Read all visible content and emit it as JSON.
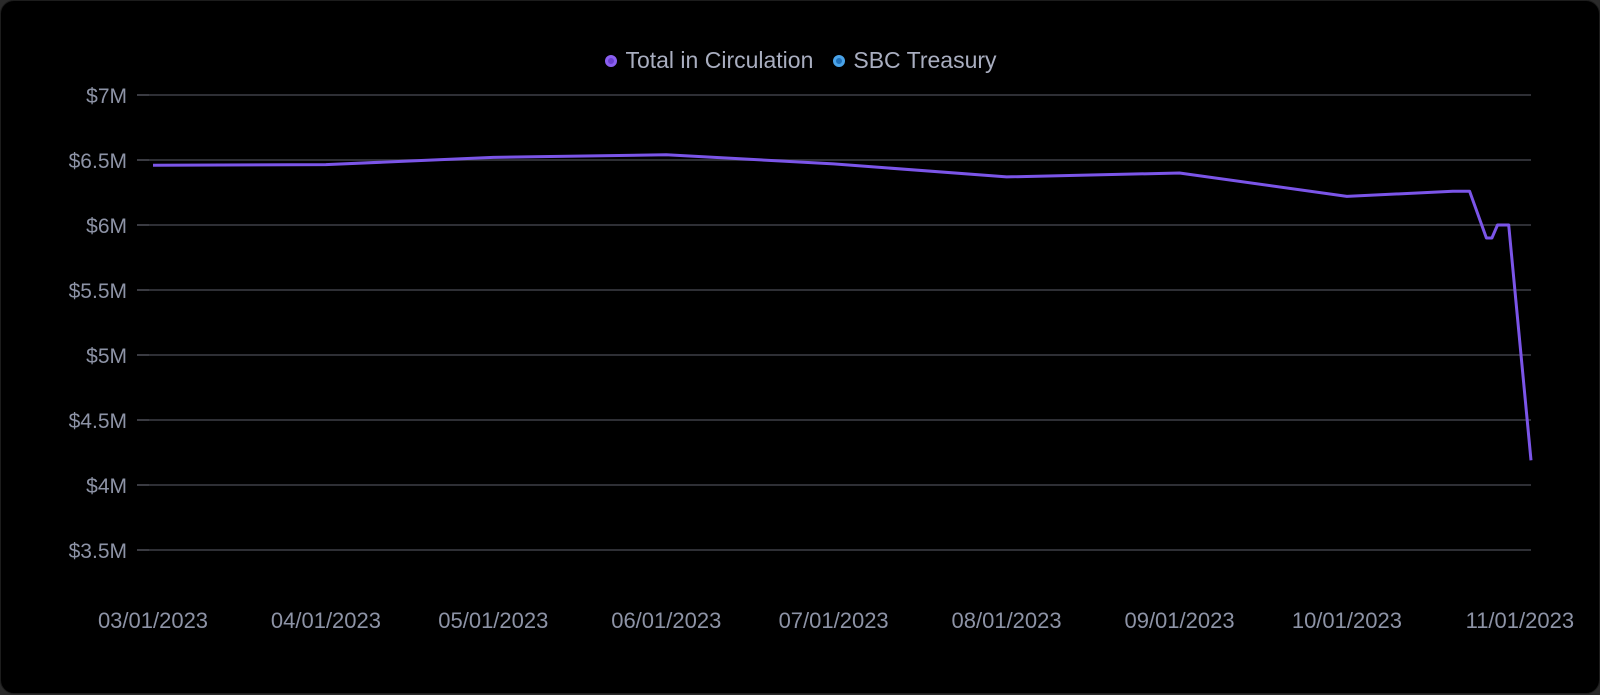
{
  "legend": {
    "items": [
      {
        "label": "Total in Circulation",
        "color": "#7b4fe0"
      },
      {
        "label": "SBC Treasury",
        "color": "#3a8fd6"
      }
    ]
  },
  "chart_data": {
    "type": "line",
    "ylim": [
      3300000,
      7000000
    ],
    "yticks": [
      {
        "value": 7000000,
        "label": "$7M"
      },
      {
        "value": 6500000,
        "label": "$6.5M"
      },
      {
        "value": 6000000,
        "label": "$6M"
      },
      {
        "value": 5500000,
        "label": "$5.5M"
      },
      {
        "value": 5000000,
        "label": "$5M"
      },
      {
        "value": 4500000,
        "label": "$4.5M"
      },
      {
        "value": 4000000,
        "label": "$4M"
      },
      {
        "value": 3500000,
        "label": "$3.5M"
      }
    ],
    "xlim": [
      "2023-03-01",
      "2023-11-03"
    ],
    "xticks": [
      {
        "value": "2023-03-01",
        "label": "03/01/2023"
      },
      {
        "value": "2023-04-01",
        "label": "04/01/2023"
      },
      {
        "value": "2023-05-01",
        "label": "05/01/2023"
      },
      {
        "value": "2023-06-01",
        "label": "06/01/2023"
      },
      {
        "value": "2023-07-01",
        "label": "07/01/2023"
      },
      {
        "value": "2023-08-01",
        "label": "08/01/2023"
      },
      {
        "value": "2023-09-01",
        "label": "09/01/2023"
      },
      {
        "value": "2023-10-01",
        "label": "10/01/2023"
      },
      {
        "value": "2023-11-01",
        "label": "11/01/2023"
      }
    ],
    "grid": true,
    "legend_position": "top-center",
    "series": [
      {
        "name": "Total in Circulation",
        "color": "#7b55e8",
        "points": [
          {
            "x": "2023-03-01",
            "y": 6460000
          },
          {
            "x": "2023-04-01",
            "y": 6465000
          },
          {
            "x": "2023-05-01",
            "y": 6520000
          },
          {
            "x": "2023-06-01",
            "y": 6540000
          },
          {
            "x": "2023-07-01",
            "y": 6470000
          },
          {
            "x": "2023-08-01",
            "y": 6370000
          },
          {
            "x": "2023-09-01",
            "y": 6400000
          },
          {
            "x": "2023-10-01",
            "y": 6220000
          },
          {
            "x": "2023-10-20",
            "y": 6260000
          },
          {
            "x": "2023-10-23",
            "y": 6260000
          },
          {
            "x": "2023-10-26",
            "y": 5900000
          },
          {
            "x": "2023-10-27",
            "y": 5900000
          },
          {
            "x": "2023-10-28",
            "y": 6000000
          },
          {
            "x": "2023-10-30",
            "y": 6000000
          },
          {
            "x": "2023-11-03",
            "y": 4190000
          },
          {
            "x": "2023-11-14",
            "y": 4190000
          }
        ]
      },
      {
        "name": "SBC Treasury",
        "color": "#3a8fd6",
        "points": []
      }
    ]
  }
}
